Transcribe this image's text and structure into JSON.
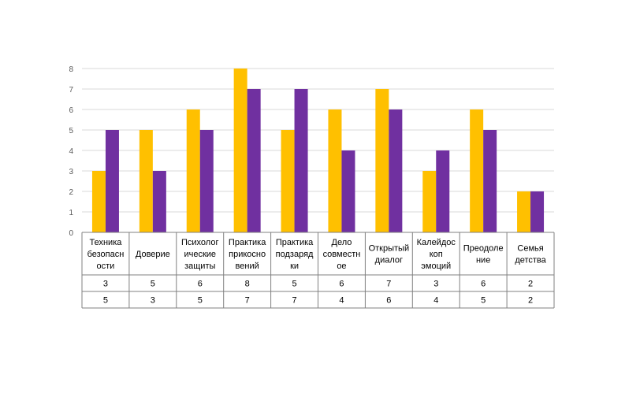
{
  "chart_data": {
    "type": "bar",
    "categories": [
      "Техника безопасности",
      "Доверие",
      "Психологические защиты",
      "Практика прикосновений",
      "Практика подзарядки",
      "Дело совместное",
      "Открытый диалог",
      "Калейдоскоп эмоций",
      "Преодоление",
      "Семья детства"
    ],
    "category_lines": [
      [
        "Техника",
        "безопасн",
        "ости"
      ],
      [
        "Доверие"
      ],
      [
        "Психолог",
        "ические",
        "защиты"
      ],
      [
        "Практика",
        "прикосно",
        "вений"
      ],
      [
        "Практика",
        "подзаряд",
        "ки"
      ],
      [
        "Дело",
        "совместн",
        "ое"
      ],
      [
        "Открытый",
        "диалог"
      ],
      [
        "Калейдос",
        "коп",
        "эмоций"
      ],
      [
        "Преодоле",
        "ние"
      ],
      [
        "Семья",
        "детства"
      ]
    ],
    "series": [
      {
        "values": [
          3,
          5,
          6,
          8,
          5,
          6,
          7,
          3,
          6,
          2
        ],
        "color": "#FFC000"
      },
      {
        "values": [
          5,
          3,
          5,
          7,
          7,
          4,
          6,
          4,
          5,
          2
        ],
        "color": "#7030A0"
      }
    ],
    "ylim": [
      0,
      8
    ],
    "yticks": [
      "0",
      "1",
      "2",
      "3",
      "4",
      "5",
      "6",
      "7",
      "8"
    ],
    "grid": true,
    "data_table": true,
    "title": "",
    "xlabel": "",
    "ylabel": ""
  }
}
